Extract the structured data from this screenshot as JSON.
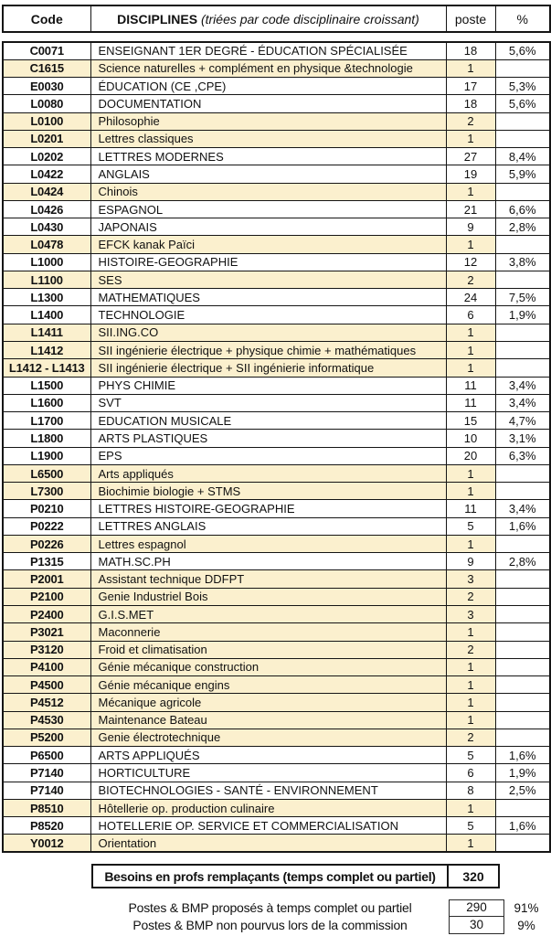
{
  "colors": {
    "highlight": "#FBF0CE",
    "border": "#151515"
  },
  "table": {
    "headers": {
      "code": "Code",
      "disciplines_bold": "DISCIPLINES",
      "disciplines_italic": " (triées par code disciplinaire croissant)",
      "poste": "poste",
      "pct": "%"
    },
    "rows": [
      {
        "code": "C0071",
        "discipline": "ENSEIGNANT 1ER DEGRÉ - ÉDUCATION SPÉCIALISÉE",
        "poste": "18",
        "pct": "5,6%",
        "highlighted": false
      },
      {
        "code": "C1615",
        "discipline": "Science naturelles + complément en physique &technologie",
        "poste": "1",
        "pct": "",
        "highlighted": true
      },
      {
        "code": "E0030",
        "discipline": "ÉDUCATION (CE ,CPE)",
        "poste": "17",
        "pct": "5,3%",
        "highlighted": false
      },
      {
        "code": "L0080",
        "discipline": "DOCUMENTATION",
        "poste": "18",
        "pct": "5,6%",
        "highlighted": false
      },
      {
        "code": "L0100",
        "discipline": "Philosophie",
        "poste": "2",
        "pct": "",
        "highlighted": true
      },
      {
        "code": "L0201",
        "discipline": "Lettres classiques",
        "poste": "1",
        "pct": "",
        "highlighted": true
      },
      {
        "code": "L0202",
        "discipline": "LETTRES MODERNES",
        "poste": "27",
        "pct": "8,4%",
        "highlighted": false
      },
      {
        "code": "L0422",
        "discipline": "ANGLAIS",
        "poste": "19",
        "pct": "5,9%",
        "highlighted": false
      },
      {
        "code": "L0424",
        "discipline": "Chinois",
        "poste": "1",
        "pct": "",
        "highlighted": true
      },
      {
        "code": "L0426",
        "discipline": "ESPAGNOL",
        "poste": "21",
        "pct": "6,6%",
        "highlighted": false
      },
      {
        "code": "L0430",
        "discipline": "JAPONAIS",
        "poste": "9",
        "pct": "2,8%",
        "highlighted": false
      },
      {
        "code": "L0478",
        "discipline": "EFCK kanak Païci",
        "poste": "1",
        "pct": "",
        "highlighted": true
      },
      {
        "code": "L1000",
        "discipline": "HISTOIRE-GEOGRAPHIE",
        "poste": "12",
        "pct": "3,8%",
        "highlighted": false
      },
      {
        "code": "L1100",
        "discipline": "SES",
        "poste": "2",
        "pct": "",
        "highlighted": true
      },
      {
        "code": "L1300",
        "discipline": "MATHEMATIQUES",
        "poste": "24",
        "pct": "7,5%",
        "highlighted": false
      },
      {
        "code": "L1400",
        "discipline": "TECHNOLOGIE",
        "poste": "6",
        "pct": "1,9%",
        "highlighted": false
      },
      {
        "code": "L1411",
        "discipline": "SII.ING.CO",
        "poste": "1",
        "pct": "",
        "highlighted": true
      },
      {
        "code": "L1412",
        "discipline": "SII ingénierie électrique + physique chimie + mathématiques",
        "poste": "1",
        "pct": "",
        "highlighted": true
      },
      {
        "code": "L1412 - L1413",
        "discipline": "SII ingénierie électrique + SII ingénierie informatique",
        "poste": "1",
        "pct": "",
        "highlighted": true
      },
      {
        "code": "L1500",
        "discipline": "PHYS CHIMIE",
        "poste": "11",
        "pct": "3,4%",
        "highlighted": false
      },
      {
        "code": "L1600",
        "discipline": "SVT",
        "poste": "11",
        "pct": "3,4%",
        "highlighted": false
      },
      {
        "code": "L1700",
        "discipline": "EDUCATION MUSICALE",
        "poste": "15",
        "pct": "4,7%",
        "highlighted": false
      },
      {
        "code": "L1800",
        "discipline": "ARTS PLASTIQUES",
        "poste": "10",
        "pct": "3,1%",
        "highlighted": false
      },
      {
        "code": "L1900",
        "discipline": "EPS",
        "poste": "20",
        "pct": "6,3%",
        "highlighted": false
      },
      {
        "code": "L6500",
        "discipline": "Arts appliqués",
        "poste": "1",
        "pct": "",
        "highlighted": true
      },
      {
        "code": "L7300",
        "discipline": "Biochimie biologie + STMS",
        "poste": "1",
        "pct": "",
        "highlighted": true
      },
      {
        "code": "P0210",
        "discipline": "LETTRES HISTOIRE-GEOGRAPHIE",
        "poste": "11",
        "pct": "3,4%",
        "highlighted": false
      },
      {
        "code": "P0222",
        "discipline": "LETTRES ANGLAIS",
        "poste": "5",
        "pct": "1,6%",
        "highlighted": false
      },
      {
        "code": "P0226",
        "discipline": "Lettres espagnol",
        "poste": "1",
        "pct": "",
        "highlighted": true
      },
      {
        "code": "P1315",
        "discipline": "MATH.SC.PH",
        "poste": "9",
        "pct": "2,8%",
        "highlighted": false
      },
      {
        "code": "P2001",
        "discipline": "Assistant technique DDFPT",
        "poste": "3",
        "pct": "",
        "highlighted": true
      },
      {
        "code": "P2100",
        "discipline": "Genie Industriel Bois",
        "poste": "2",
        "pct": "",
        "highlighted": true
      },
      {
        "code": "P2400",
        "discipline": "G.I.S.MET",
        "poste": "3",
        "pct": "",
        "highlighted": true
      },
      {
        "code": "P3021",
        "discipline": "Maconnerie",
        "poste": "1",
        "pct": "",
        "highlighted": true
      },
      {
        "code": "P3120",
        "discipline": "Froid et climatisation",
        "poste": "2",
        "pct": "",
        "highlighted": true
      },
      {
        "code": "P4100",
        "discipline": "Génie mécanique construction",
        "poste": "1",
        "pct": "",
        "highlighted": true
      },
      {
        "code": "P4500",
        "discipline": "Génie mécanique engins",
        "poste": "1",
        "pct": "",
        "highlighted": true
      },
      {
        "code": "P4512",
        "discipline": "Mécanique agricole",
        "poste": "1",
        "pct": "",
        "highlighted": true
      },
      {
        "code": "P4530",
        "discipline": "Maintenance Bateau",
        "poste": "1",
        "pct": "",
        "highlighted": true
      },
      {
        "code": "P5200",
        "discipline": "Genie  électrotechnique",
        "poste": "2",
        "pct": "",
        "highlighted": true
      },
      {
        "code": "P6500",
        "discipline": "ARTS APPLIQUÉS",
        "poste": "5",
        "pct": "1,6%",
        "highlighted": false
      },
      {
        "code": "P7140",
        "discipline": "HORTICULTURE",
        "poste": "6",
        "pct": "1,9%",
        "highlighted": false
      },
      {
        "code": "P7140",
        "discipline": "BIOTECHNOLOGIES - SANTÉ - ENVIRONNEMENT",
        "poste": "8",
        "pct": "2,5%",
        "highlighted": false
      },
      {
        "code": "P8510",
        "discipline": "Hôtellerie op. production culinaire",
        "poste": "1",
        "pct": "",
        "highlighted": true
      },
      {
        "code": "P8520",
        "discipline": "HOTELLERIE OP. SERVICE ET COMMERCIALISATION",
        "poste": "5",
        "pct": "1,6%",
        "highlighted": false
      },
      {
        "code": "Y0012",
        "discipline": "Orientation",
        "poste": "1",
        "pct": "",
        "highlighted": true
      }
    ]
  },
  "summary": {
    "besoins_label": "Besoins en profs remplaçants (temps complet ou partiel)",
    "besoins_value": "320",
    "lines": [
      {
        "label": "Postes & BMP proposés à temps complet ou partiel",
        "value": "290",
        "pct": "91%"
      },
      {
        "label": "Postes & BMP non pourvus lors de la commission",
        "value": "30",
        "pct": "9%"
      }
    ]
  }
}
